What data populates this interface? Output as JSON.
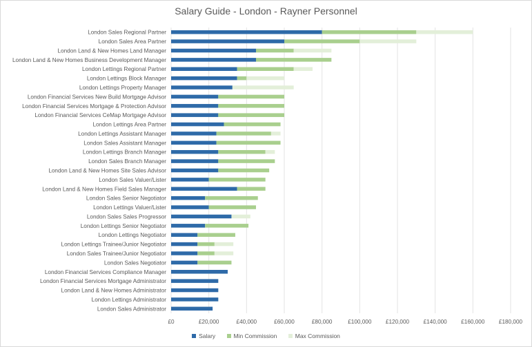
{
  "chart_data": {
    "type": "bar",
    "orientation": "horizontal",
    "stacked": true,
    "title": "Salary Guide - London - Rayner Personnel",
    "xlabel": "",
    "ylabel": "",
    "xlim": [
      0,
      180000
    ],
    "x_ticks": [
      "£0",
      "£20,000",
      "£40,000",
      "£60,000",
      "£80,000",
      "£100,000",
      "£120,000",
      "£140,000",
      "£160,000",
      "£180,000"
    ],
    "x_tick_values": [
      0,
      20000,
      40000,
      60000,
      80000,
      100000,
      120000,
      140000,
      160000,
      180000
    ],
    "grid": "vertical",
    "legend_position": "bottom",
    "categories": [
      "London Sales Regional Partner",
      "London Sales Area Partner",
      "London Land & New Homes Land Manager",
      "London Land & New Homes Business Development Manager",
      "London Lettings Regional Partner",
      "London Lettings Block Manager",
      "London Lettings Property Manager",
      "London Financial Services New Build Mortgage Advisor",
      "London Financial Services Mortgage & Protection Advisor",
      "London Financial Services CeMap Mortgage Advisor",
      "London Lettings Area Partner",
      "London Lettings Assistant Manager",
      "London Sales Assistant Manager",
      "London Lettings Branch Manager",
      "London Sales Branch Manager",
      "London Land & New Homes Site Sales Advisor",
      "London Sales Valuer/Lister",
      "London Land & New Homes Field Sales Manager",
      "London Sales Senior Negotiator",
      "London Lettings Valuer/Lister",
      "London Sales Sales Progressor",
      "London Lettings Senior Negotiator",
      "London Lettings Negotiator",
      "London Lettings Trainee/Junior Negotiator",
      "London Sales Trainee/Junior Negotiator",
      "London Sales Negotiator",
      "London Financial Services Compliance Manager",
      "London Financial Services Mortgage Administrator",
      "London Land & New Homes Administrator",
      "London Lettings Administrator",
      "London Sales Administrator"
    ],
    "series": [
      {
        "name": "Salary",
        "color": "#2e6aa8",
        "values": [
          80000,
          60000,
          45000,
          45000,
          35000,
          35000,
          32500,
          25000,
          25000,
          25000,
          28000,
          24000,
          24000,
          25000,
          25000,
          25000,
          20000,
          35000,
          18000,
          20000,
          32000,
          18000,
          14000,
          14000,
          14000,
          14000,
          30000,
          25000,
          25000,
          25000,
          22000
        ]
      },
      {
        "name": "Min Commission",
        "color": "#a9cf8e",
        "values": [
          50000,
          40000,
          20000,
          40000,
          30000,
          5000,
          0,
          35000,
          35000,
          35000,
          30000,
          29000,
          34000,
          25000,
          30000,
          27000,
          30000,
          15000,
          28000,
          25000,
          0,
          23000,
          20000,
          9000,
          9000,
          18000,
          0,
          0,
          0,
          0,
          0
        ]
      },
      {
        "name": "Max Commission",
        "color": "#e3efd9",
        "values": [
          30000,
          30000,
          20000,
          0,
          10000,
          20000,
          32500,
          0,
          0,
          0,
          0,
          5000,
          0,
          5000,
          0,
          0,
          0,
          0,
          0,
          0,
          10000,
          0,
          0,
          10000,
          10000,
          0,
          0,
          0,
          0,
          0,
          0
        ]
      }
    ]
  }
}
